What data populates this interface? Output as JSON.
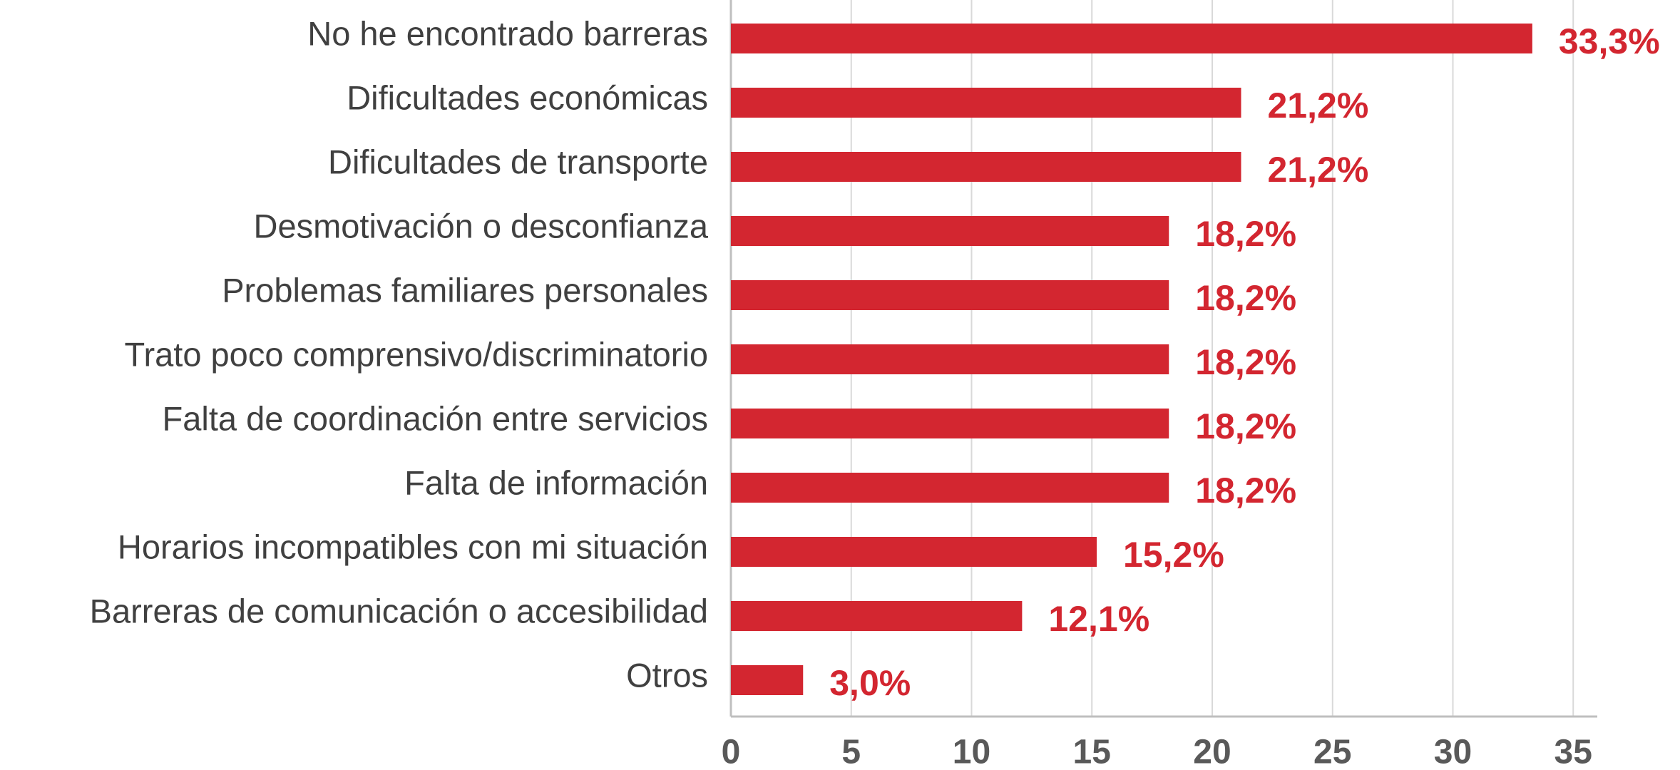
{
  "chart_data": {
    "type": "barh",
    "categories": [
      "No he encontrado barreras",
      "Dificultades económicas",
      "Dificultades de transporte",
      "Desmotivación o desconfianza",
      "Problemas familiares personales",
      "Trato poco comprensivo/discriminatorio",
      "Falta de coordinación entre servicios",
      "Falta de información",
      "Horarios incompatibles con mi situación",
      "Barreras de comunicación o accesibilidad",
      "Otros"
    ],
    "values": [
      33.3,
      21.2,
      21.2,
      18.2,
      18.2,
      18.2,
      18.2,
      18.2,
      15.2,
      12.1,
      3.0
    ],
    "value_labels": [
      "33,3%",
      "21,2%",
      "21,2%",
      "18,2%",
      "18,2%",
      "18,2%",
      "18,2%",
      "18,2%",
      "15,2%",
      "12,1%",
      "3,0%"
    ],
    "color": "#d32630",
    "xlim": [
      0,
      36
    ],
    "xticks": [
      0,
      5,
      10,
      15,
      20,
      25,
      30,
      35
    ],
    "grid": true
  }
}
